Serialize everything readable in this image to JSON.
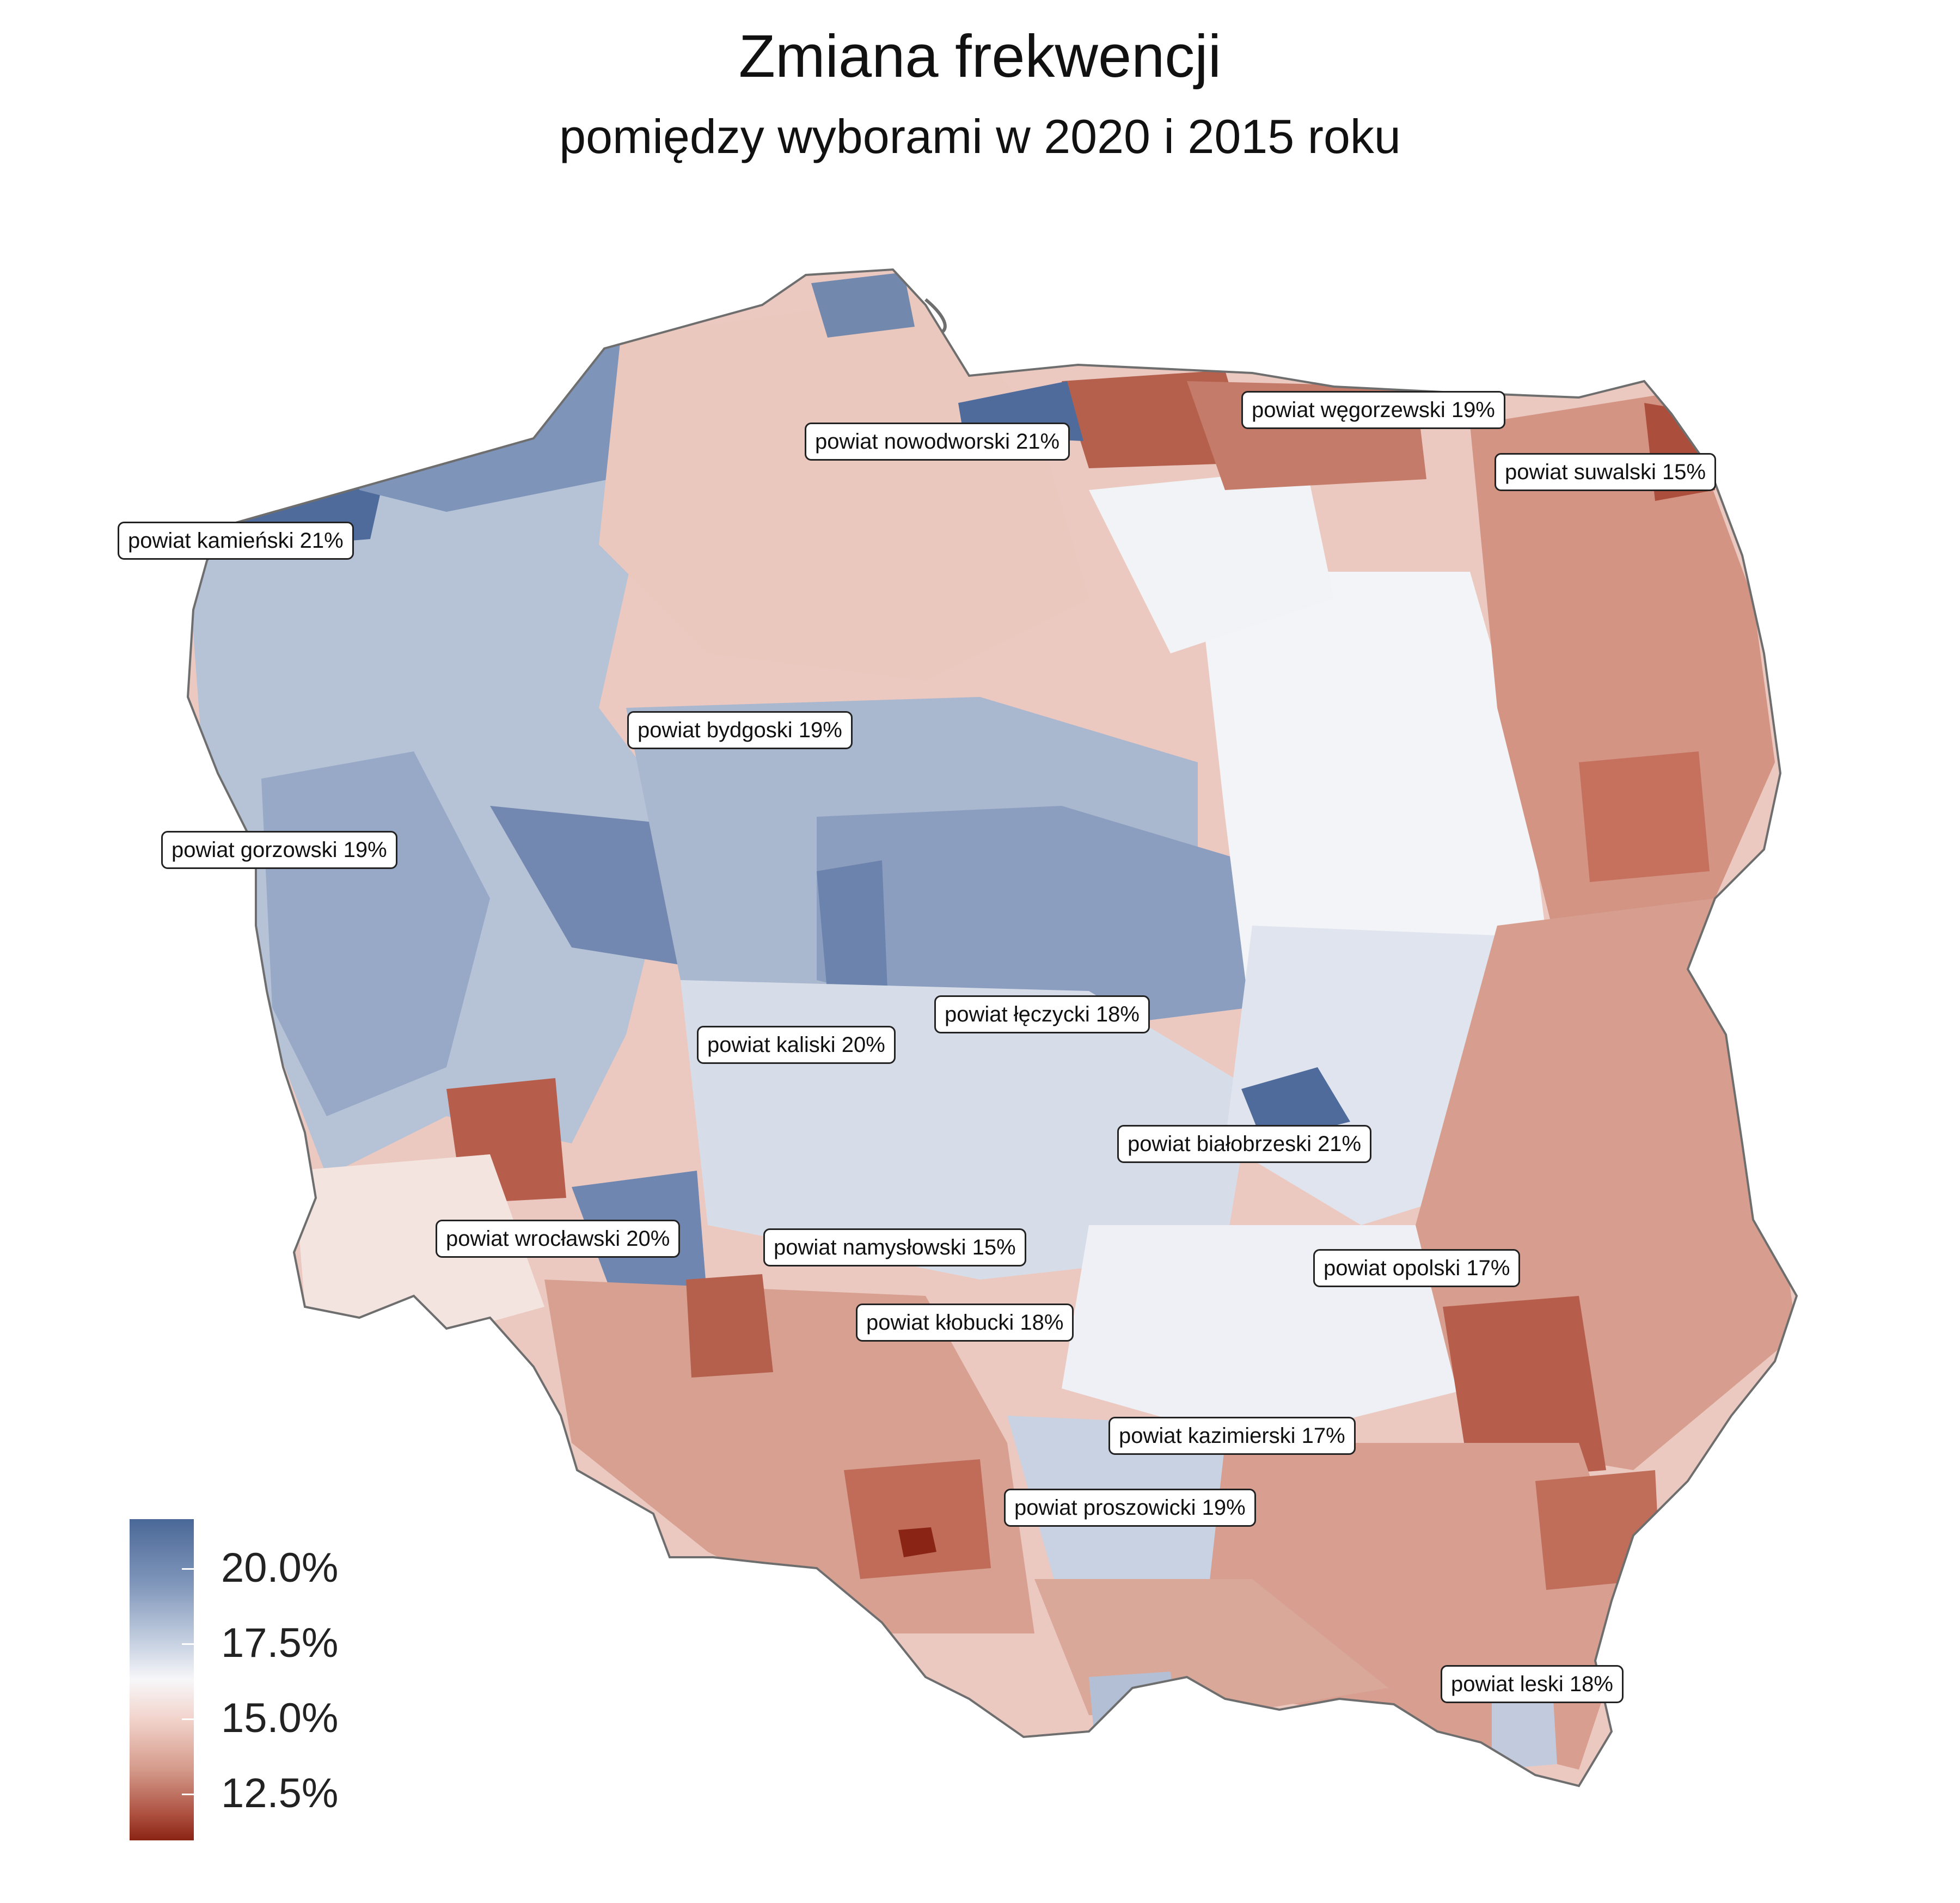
{
  "title": "Zmiana frekwencji",
  "subtitle": "pomiędzy wyborami w 2020 i 2015 roku",
  "legend": {
    "labels": [
      "20.0%",
      "17.5%",
      "15.0%",
      "12.5%"
    ],
    "scale": {
      "max_color": "#4a6897",
      "mid_color": "#f7f7f9",
      "min_color": "#8a2414"
    }
  },
  "callouts": [
    {
      "label": "powiat węgorzewski 19%"
    },
    {
      "label": "powiat nowodworski 21%"
    },
    {
      "label": "powiat suwalski 15%"
    },
    {
      "label": "powiat kamieński 21%"
    },
    {
      "label": "powiat bydgoski 19%"
    },
    {
      "label": "powiat gorzowski 19%"
    },
    {
      "label": "powiat łęczycki 18%"
    },
    {
      "label": "powiat kaliski 20%"
    },
    {
      "label": "powiat białobrzeski 21%"
    },
    {
      "label": "powiat wrocławski 20%"
    },
    {
      "label": "powiat namysłowski 15%"
    },
    {
      "label": "powiat opolski 17%"
    },
    {
      "label": "powiat kłobucki 18%"
    },
    {
      "label": "powiat kazimierski 17%"
    },
    {
      "label": "powiat proszowicki 19%"
    },
    {
      "label": "powiat leski 18%"
    }
  ]
}
